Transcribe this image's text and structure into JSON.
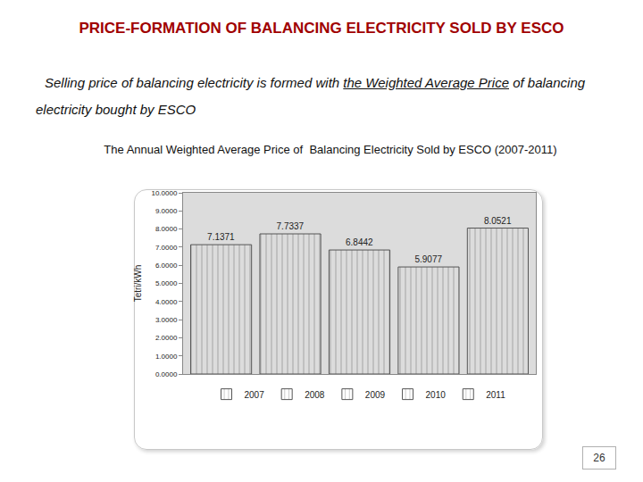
{
  "slide": {
    "heading": "PRICE-FORMATION OF BALANCING ELECTRICITY SOLD BY ESCO",
    "text_before": "Selling price of balancing electricity is formed with ",
    "text_underlined": "the Weighted Average Price",
    "text_after": " of balancing electricity bought by ESCO",
    "page": 26
  },
  "chart_data": {
    "type": "bar",
    "title": "The Annual Weighted Average Price of  Balancing Electricity Sold by ESCO (2007-2011)",
    "y_label": "Tetri/kWh",
    "categories": [
      "2007",
      "2008",
      "2009",
      "2010",
      "2011"
    ],
    "values": [
      7.1371,
      7.7337,
      6.8442,
      5.9077,
      8.0521
    ],
    "colors": [
      "#d9344c",
      "#8f8f8f",
      "#a6a6a6",
      "#3fd1b2",
      "#b4b4f2"
    ],
    "ylim": [
      0,
      10
    ],
    "yticks": [
      {
        "value": 0,
        "label": "0.0000"
      },
      {
        "value": 1,
        "label": "1.0000"
      },
      {
        "value": 2,
        "label": "2.0000"
      },
      {
        "value": 3,
        "label": "3.0000"
      },
      {
        "value": 4,
        "label": "4.0000"
      },
      {
        "value": 5,
        "label": "5.0000"
      },
      {
        "value": 6,
        "label": "6.0000"
      },
      {
        "value": 7,
        "label": "7.0000"
      },
      {
        "value": 8,
        "label": "8.0000"
      },
      {
        "value": 9,
        "label": "9.0000"
      },
      {
        "value": 10,
        "label": "10.0000"
      }
    ],
    "grid": false,
    "legend": "bottom",
    "data_labels": true,
    "tick_labels": "y"
  }
}
